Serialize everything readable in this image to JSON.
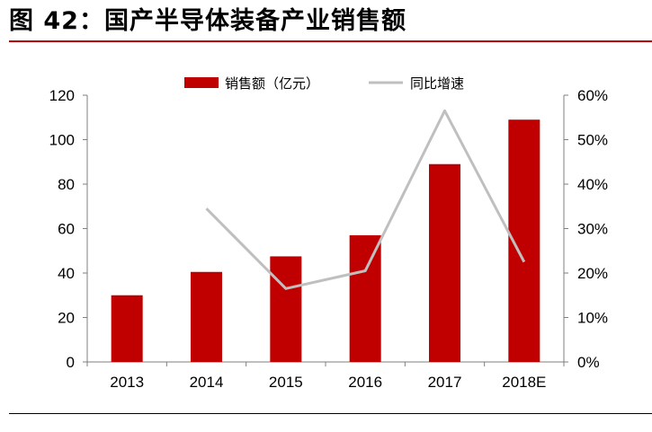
{
  "figure_title": "图 42：国产半导体装备产业销售额",
  "chart_data": {
    "type": "bar",
    "categories": [
      "2013",
      "2014",
      "2015",
      "2016",
      "2017",
      "2018E"
    ],
    "series": [
      {
        "name": "销售额（亿元）",
        "type": "bar",
        "axis": "left",
        "color": "#c00000",
        "values": [
          30,
          40.5,
          47.5,
          57,
          89,
          109
        ]
      },
      {
        "name": "同比增速",
        "type": "line",
        "axis": "right",
        "color": "#bfbfbf",
        "values": [
          null,
          34.5,
          16.5,
          20.5,
          56.5,
          22.5
        ]
      }
    ],
    "y_left": {
      "lim": [
        0,
        120
      ],
      "ticks": [
        "0",
        "20",
        "40",
        "60",
        "80",
        "100",
        "120"
      ]
    },
    "y_right": {
      "lim": [
        0,
        0.6
      ],
      "ticks": [
        "0%",
        "10%",
        "20%",
        "30%",
        "40%",
        "50%",
        "60%"
      ]
    },
    "legend_position": "top-center",
    "grid": false
  }
}
